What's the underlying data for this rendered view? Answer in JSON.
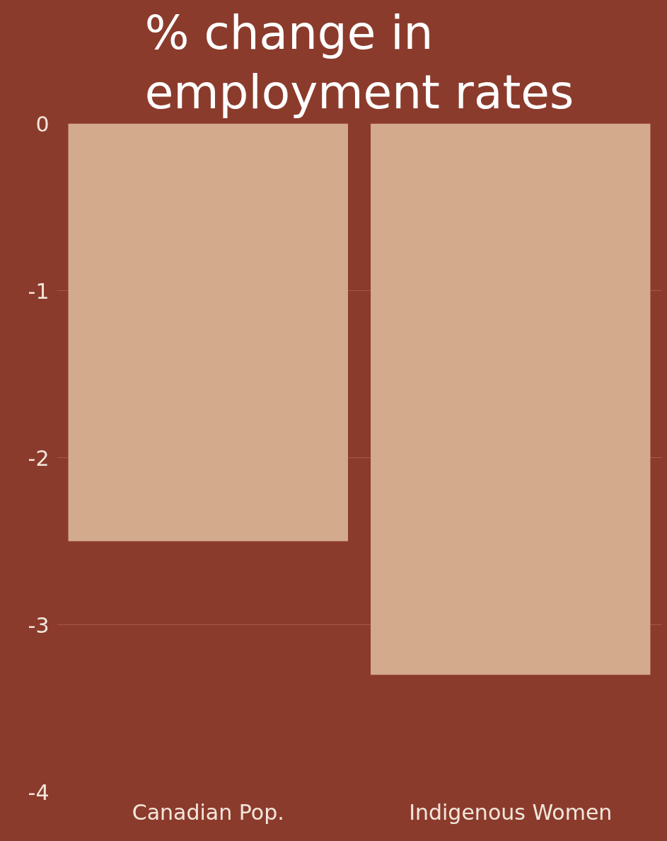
{
  "chart_data": {
    "type": "bar",
    "title": "% change in employment rates",
    "categories": [
      "Canadian Pop.",
      "Indigenous Women"
    ],
    "values": [
      -2.5,
      -3.3
    ],
    "color": "#d4aa8c",
    "ylim": [
      -4,
      0
    ],
    "yticks": [
      -4,
      -3,
      -2,
      -1,
      0
    ],
    "grid": "y"
  }
}
